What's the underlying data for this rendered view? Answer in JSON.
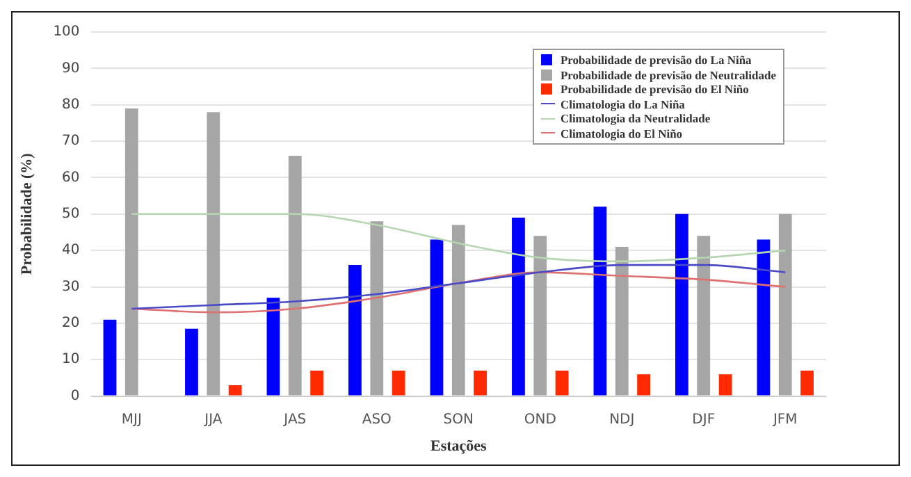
{
  "chart_data": {
    "type": "bar",
    "xlabel": "Estações",
    "ylabel": "Probabilidade (%)",
    "categories": [
      "MJJ",
      "JJA",
      "JAS",
      "ASO",
      "SON",
      "OND",
      "NDJ",
      "DJF",
      "JFM"
    ],
    "series": [
      {
        "name": "Probabilidade de previsão do La Niña",
        "color": "#0000ff",
        "values": [
          21,
          18.5,
          27,
          36,
          43,
          49,
          52,
          50,
          43
        ]
      },
      {
        "name": "Probabilidade de previsão de Neutralidade",
        "color": "#a6a6a6",
        "values": [
          79,
          78,
          66,
          48,
          47,
          44,
          41,
          44,
          50
        ]
      },
      {
        "name": "Probabilidade de previsão do El Niño",
        "color": "#ff2a00",
        "values": [
          0,
          3,
          7,
          7,
          7,
          7,
          6,
          6,
          7
        ]
      },
      {
        "name": "Climatologia do La Niña",
        "type": "line",
        "color": "#4a4ac8",
        "values": [
          24,
          25,
          26,
          28,
          31,
          34,
          36,
          36,
          34
        ]
      },
      {
        "name": "Climatologia da Neutralidade",
        "type": "line",
        "color": "#b5d6b0",
        "values": [
          50,
          50,
          50,
          47,
          42,
          38,
          37,
          38,
          40
        ]
      },
      {
        "name": "Climatologia do El Niño",
        "type": "line",
        "color": "#e07070",
        "values": [
          24,
          23,
          24,
          27,
          31,
          34,
          33,
          32,
          30
        ]
      }
    ],
    "ylim": [
      0,
      100
    ],
    "yticks": [
      0,
      10,
      20,
      30,
      40,
      50,
      60,
      70,
      80,
      90,
      100
    ],
    "grid": "y",
    "legend": "top right",
    "marker": "none"
  }
}
